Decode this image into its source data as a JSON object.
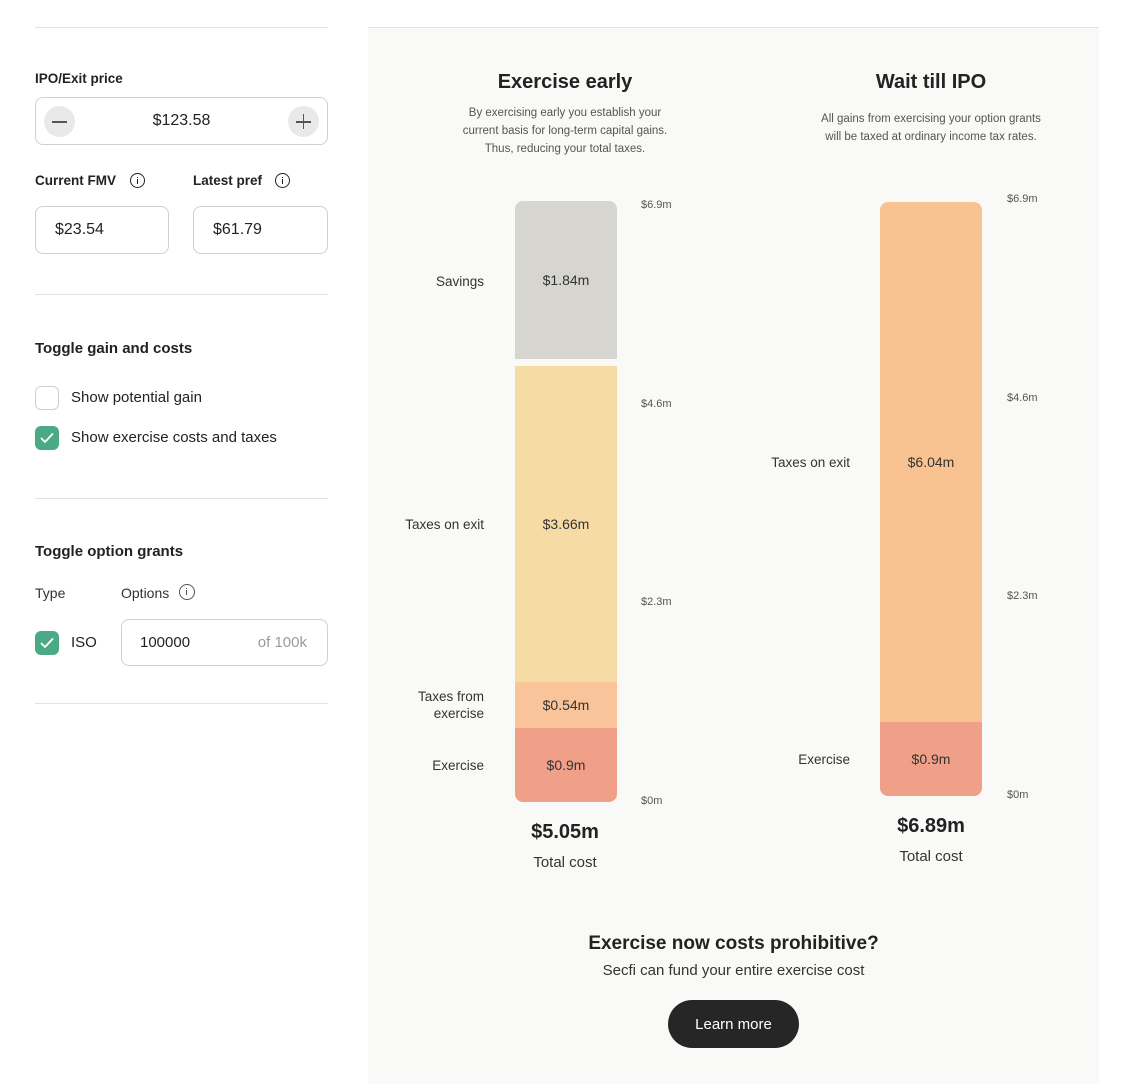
{
  "exit_price": {
    "label": "IPO/Exit price",
    "value": "$123.58"
  },
  "fmv": {
    "label": "Current FMV",
    "value": "$23.54"
  },
  "pref": {
    "label": "Latest pref",
    "value": "$61.79"
  },
  "toggle_gain": {
    "heading": "Toggle gain and costs",
    "show_gain": {
      "label": "Show potential gain",
      "checked": false
    },
    "show_costs": {
      "label": "Show exercise costs and taxes",
      "checked": true
    }
  },
  "toggle_grants": {
    "heading": "Toggle option grants",
    "type_label": "Type",
    "options_label": "Options",
    "grant": {
      "type": "ISO",
      "checked": true,
      "options_value": "100000",
      "options_suffix": "of 100k"
    }
  },
  "early": {
    "title": "Exercise early",
    "subtitle_lines": [
      "By exercising early you establish your",
      "current basis for long-term capital gains.",
      "Thus, reducing your total taxes."
    ],
    "segments": {
      "savings": {
        "label": "Savings",
        "value": "$1.84m"
      },
      "taxes_exit": {
        "label": "Taxes on exit",
        "value": "$3.66m"
      },
      "taxes_exercise": {
        "label": "Taxes from exercise",
        "value": "$0.54m"
      },
      "exercise": {
        "label": "Exercise",
        "value": "$0.9m"
      }
    },
    "ticks": [
      "$6.9m",
      "$4.6m",
      "$2.3m",
      "$0m"
    ],
    "total_value": "$5.05m",
    "total_label": "Total cost"
  },
  "ipo": {
    "title": "Wait till IPO",
    "subtitle_lines": [
      "All gains from exercising your option grants",
      "will be taxed at ordinary income tax rates."
    ],
    "segments": {
      "taxes_exit": {
        "label": "Taxes on exit",
        "value": "$6.04m"
      },
      "exercise": {
        "label": "Exercise",
        "value": "$0.9m"
      }
    },
    "ticks": [
      "$6.9m",
      "$4.6m",
      "$2.3m",
      "$0m"
    ],
    "total_value": "$6.89m",
    "total_label": "Total cost"
  },
  "cta": {
    "title": "Exercise now costs prohibitive?",
    "subtitle": "Secfi can fund your entire exercise cost",
    "button": "Learn more"
  },
  "colors": {
    "savings": "#d6d5cf",
    "taxes_exit_early": "#f6dba5",
    "taxes_exercise": "#f9c49a",
    "exercise": "#f09f89",
    "taxes_exit_ipo": "#f9c391",
    "accent_green": "#4aaa85"
  }
}
